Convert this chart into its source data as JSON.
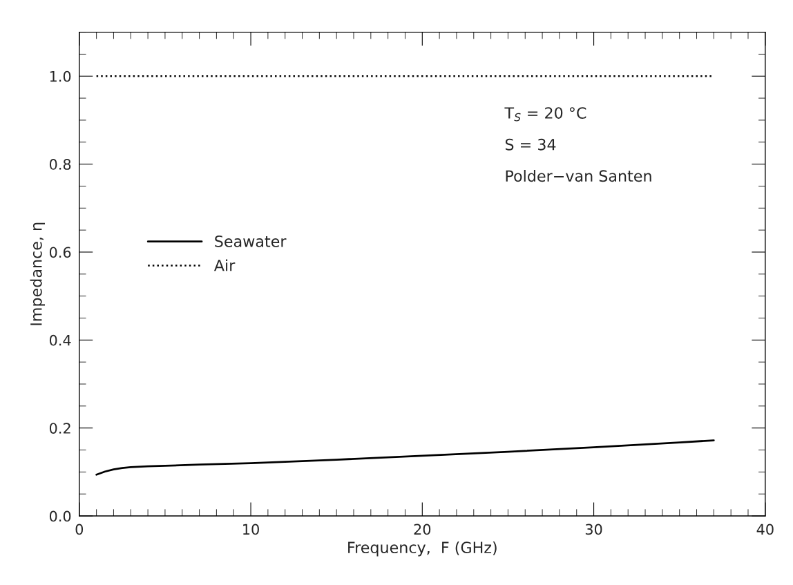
{
  "chart_data": {
    "type": "line",
    "xlabel": "Frequency,  F (GHz)",
    "ylabel": "Impedance, η",
    "xlim": [
      0,
      40
    ],
    "ylim": [
      0,
      1.1
    ],
    "xticks": [
      0,
      10,
      20,
      30,
      40
    ],
    "yticks": [
      {
        "value": 0,
        "label": "0.0"
      },
      {
        "value": 0.2,
        "label": "0.2"
      },
      {
        "value": 0.4,
        "label": "0.4"
      },
      {
        "value": 0.6,
        "label": "0.6"
      },
      {
        "value": 0.8,
        "label": "0.8"
      },
      {
        "value": 1.0,
        "label": "1.0"
      }
    ],
    "series": [
      {
        "name": "Seawater",
        "color": "#000000",
        "line_style": "solid",
        "x": [
          1,
          1.5,
          2,
          2.5,
          3,
          4,
          5,
          7,
          10,
          15,
          20,
          25,
          30,
          35,
          37
        ],
        "values": [
          0.094,
          0.101,
          0.106,
          0.109,
          0.111,
          0.113,
          0.114,
          0.117,
          0.12,
          0.128,
          0.137,
          0.146,
          0.156,
          0.167,
          0.172
        ]
      },
      {
        "name": "Air",
        "color": "#000000",
        "line_style": "dotted",
        "x": [
          1,
          37
        ],
        "values": [
          1.0,
          1.0
        ]
      }
    ],
    "legend": "center left",
    "grid": false,
    "annotations": [
      "T$_{S}$ = 20 °C",
      "S = 34",
      "Polder−van Santen"
    ]
  }
}
